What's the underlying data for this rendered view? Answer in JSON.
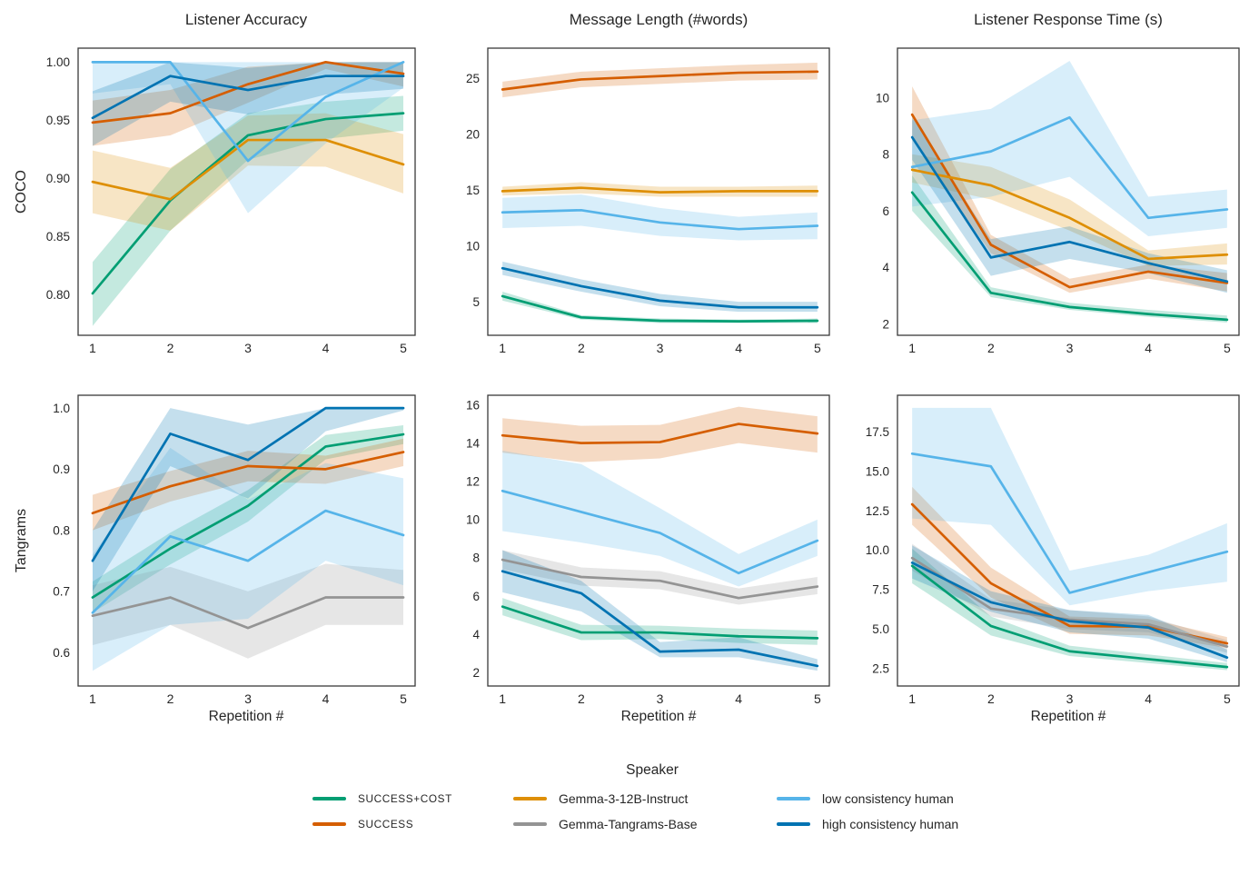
{
  "figure": {
    "column_titles": [
      "Listener Accuracy",
      "Message Length (#words)",
      "Listener Response Time (s)"
    ],
    "row_labels": [
      "COCO",
      "Tangrams"
    ],
    "xlabel": "Repetition #"
  },
  "legend": {
    "title": "Speaker",
    "entries": [
      {
        "key": "success_cost",
        "label": "SUCCESS+COST",
        "color": "#029e73"
      },
      {
        "key": "success",
        "label": "SUCCESS",
        "color": "#d55e00"
      },
      {
        "key": "gemma_12b",
        "label": "Gemma-3-12B-Instruct",
        "color": "#de8f05"
      },
      {
        "key": "gemma_base",
        "label": "Gemma-Tangrams-Base",
        "color": "#949494"
      },
      {
        "key": "low_human",
        "label": "low consistency human",
        "color": "#56b4e9"
      },
      {
        "key": "high_human",
        "label": "high consistency human",
        "color": "#0173b2"
      }
    ]
  },
  "chart_data": [
    {
      "type": "line",
      "title": "Listener Accuracy",
      "row": "COCO",
      "x": [
        1,
        2,
        3,
        4,
        5
      ],
      "xticks": [
        "1",
        "2",
        "3",
        "4",
        "5"
      ],
      "ylim": [
        0.765,
        1.012
      ],
      "yticks": [
        0.8,
        0.85,
        0.9,
        0.95,
        1.0
      ],
      "ytick_labels": [
        "0.80",
        "0.85",
        "0.90",
        "0.95",
        "1.00"
      ],
      "grid": false,
      "band_alpha": 0.23,
      "series": [
        {
          "key": "success_cost",
          "name": "SUCCESS+COST",
          "values": [
            0.801,
            0.881,
            0.937,
            0.951,
            0.956
          ],
          "band_lo": [
            0.773,
            0.855,
            0.916,
            0.934,
            0.941
          ],
          "band_hi": [
            0.828,
            0.908,
            0.956,
            0.966,
            0.971
          ]
        },
        {
          "key": "success",
          "name": "SUCCESS",
          "values": [
            0.948,
            0.956,
            0.981,
            1.0,
            0.99
          ],
          "band_lo": [
            0.928,
            0.937,
            0.965,
            0.994,
            0.979
          ],
          "band_hi": [
            0.967,
            0.976,
            0.996,
            1.0,
            1.0
          ]
        },
        {
          "key": "gemma_12b",
          "name": "Gemma-3-12B-Instruct",
          "values": [
            0.897,
            0.882,
            0.933,
            0.933,
            0.912
          ],
          "band_lo": [
            0.87,
            0.855,
            0.911,
            0.91,
            0.887
          ],
          "band_hi": [
            0.924,
            0.909,
            0.954,
            0.956,
            0.938
          ]
        },
        {
          "key": "low_human",
          "name": "low consistency human",
          "values": [
            1.0,
            1.0,
            0.915,
            0.97,
            1.0
          ],
          "band_lo": [
            0.973,
            0.981,
            0.87,
            0.93,
            0.978
          ],
          "band_hi": [
            1.0,
            1.0,
            1.0,
            1.0,
            1.0
          ]
        },
        {
          "key": "high_human",
          "name": "high consistency human",
          "values": [
            0.952,
            0.988,
            0.976,
            0.988,
            0.988
          ],
          "band_lo": [
            0.928,
            0.966,
            0.955,
            0.972,
            0.977
          ],
          "band_hi": [
            0.975,
            1.0,
            0.995,
            1.0,
            1.0
          ]
        }
      ]
    },
    {
      "type": "line",
      "title": "Message Length (#words)",
      "row": "COCO",
      "x": [
        1,
        2,
        3,
        4,
        5
      ],
      "xticks": [
        "1",
        "2",
        "3",
        "4",
        "5"
      ],
      "ylim": [
        2.0,
        27.7
      ],
      "yticks": [
        5,
        10,
        15,
        20,
        25
      ],
      "ytick_labels": [
        "5",
        "10",
        "15",
        "20",
        "25"
      ],
      "grid": false,
      "band_alpha": 0.23,
      "series": [
        {
          "key": "success_cost",
          "name": "SUCCESS+COST",
          "values": [
            5.5,
            3.6,
            3.3,
            3.25,
            3.3
          ],
          "band_lo": [
            5.1,
            3.4,
            3.1,
            3.1,
            3.1
          ],
          "band_hi": [
            5.9,
            3.8,
            3.5,
            3.4,
            3.5
          ]
        },
        {
          "key": "success",
          "name": "SUCCESS",
          "values": [
            24.0,
            24.9,
            25.2,
            25.5,
            25.6
          ],
          "band_lo": [
            23.3,
            24.2,
            24.5,
            24.8,
            24.9
          ],
          "band_hi": [
            24.7,
            25.6,
            25.9,
            26.2,
            26.4
          ]
        },
        {
          "key": "gemma_12b",
          "name": "Gemma-3-12B-Instruct",
          "values": [
            14.9,
            15.2,
            14.8,
            14.9,
            14.9
          ],
          "band_lo": [
            14.5,
            14.7,
            14.4,
            14.4,
            14.4
          ],
          "band_hi": [
            15.3,
            15.7,
            15.3,
            15.3,
            15.4
          ]
        },
        {
          "key": "low_human",
          "name": "low consistency human",
          "values": [
            13.0,
            13.2,
            12.1,
            11.5,
            11.8
          ],
          "band_lo": [
            11.6,
            11.8,
            10.9,
            10.5,
            10.6
          ],
          "band_hi": [
            14.3,
            14.6,
            13.4,
            12.6,
            13.0
          ]
        },
        {
          "key": "high_human",
          "name": "high consistency human",
          "values": [
            8.0,
            6.4,
            5.1,
            4.5,
            4.5
          ],
          "band_lo": [
            7.4,
            5.9,
            4.6,
            4.1,
            4.1
          ],
          "band_hi": [
            8.6,
            7.0,
            5.7,
            5.0,
            5.0
          ]
        }
      ]
    },
    {
      "type": "line",
      "title": "Listener Response Time (s)",
      "row": "COCO",
      "x": [
        1,
        2,
        3,
        4,
        5
      ],
      "xticks": [
        "1",
        "2",
        "3",
        "4",
        "5"
      ],
      "ylim": [
        1.6,
        11.75
      ],
      "yticks": [
        2,
        4,
        6,
        8,
        10
      ],
      "ytick_labels": [
        "2",
        "4",
        "6",
        "8",
        "10"
      ],
      "grid": false,
      "band_alpha": 0.23,
      "series": [
        {
          "key": "success_cost",
          "name": "SUCCESS+COST",
          "values": [
            6.65,
            3.1,
            2.6,
            2.35,
            2.15
          ],
          "band_lo": [
            6.0,
            2.95,
            2.5,
            2.25,
            2.05
          ],
          "band_hi": [
            7.25,
            3.3,
            2.75,
            2.5,
            2.3
          ]
        },
        {
          "key": "success",
          "name": "SUCCESS",
          "values": [
            9.4,
            4.8,
            3.3,
            3.85,
            3.45
          ],
          "band_lo": [
            8.5,
            4.5,
            3.1,
            3.6,
            3.15
          ],
          "band_hi": [
            10.4,
            5.15,
            3.6,
            4.1,
            3.8
          ]
        },
        {
          "key": "gemma_12b",
          "name": "Gemma-3-12B-Instruct",
          "values": [
            7.45,
            6.9,
            5.75,
            4.3,
            4.45
          ],
          "band_lo": [
            7.0,
            6.4,
            5.3,
            4.05,
            4.1
          ],
          "band_hi": [
            8.0,
            7.55,
            6.4,
            4.6,
            4.85
          ]
        },
        {
          "key": "low_human",
          "name": "low consistency human",
          "values": [
            7.55,
            8.1,
            9.3,
            5.75,
            6.05
          ],
          "band_lo": [
            6.15,
            6.5,
            7.2,
            5.1,
            5.4
          ],
          "band_hi": [
            9.2,
            9.6,
            11.3,
            6.5,
            6.75
          ]
        },
        {
          "key": "high_human",
          "name": "high consistency human",
          "values": [
            8.6,
            4.35,
            4.9,
            4.15,
            3.5
          ],
          "band_lo": [
            7.8,
            3.7,
            4.3,
            3.8,
            3.1
          ],
          "band_hi": [
            9.3,
            5.0,
            5.45,
            4.5,
            3.9
          ]
        }
      ]
    },
    {
      "type": "line",
      "title": "Listener Accuracy",
      "row": "Tangrams",
      "x": [
        1,
        2,
        3,
        4,
        5
      ],
      "xticks": [
        "1",
        "2",
        "3",
        "4",
        "5"
      ],
      "ylim": [
        0.545,
        1.021
      ],
      "yticks": [
        0.6,
        0.7,
        0.8,
        0.9,
        1.0
      ],
      "ytick_labels": [
        "0.6",
        "0.7",
        "0.8",
        "0.9",
        "1.0"
      ],
      "grid": false,
      "band_alpha": 0.23,
      "series": [
        {
          "key": "success_cost",
          "name": "SUCCESS+COST",
          "values": [
            0.69,
            0.77,
            0.84,
            0.937,
            0.957
          ],
          "band_lo": [
            0.665,
            0.744,
            0.814,
            0.916,
            0.941
          ],
          "band_hi": [
            0.716,
            0.796,
            0.866,
            0.956,
            0.972
          ]
        },
        {
          "key": "success",
          "name": "SUCCESS",
          "values": [
            0.828,
            0.872,
            0.905,
            0.9,
            0.928
          ],
          "band_lo": [
            0.8,
            0.847,
            0.88,
            0.876,
            0.905
          ],
          "band_hi": [
            0.858,
            0.897,
            0.93,
            0.922,
            0.95
          ]
        },
        {
          "key": "gemma_base",
          "name": "Gemma-Tangrams-Base",
          "values": [
            0.66,
            0.69,
            0.64,
            0.69,
            0.69
          ],
          "band_lo": [
            0.612,
            0.645,
            0.59,
            0.645,
            0.645
          ],
          "band_hi": [
            0.71,
            0.74,
            0.7,
            0.745,
            0.735
          ]
        },
        {
          "key": "low_human",
          "name": "low consistency human",
          "values": [
            0.665,
            0.79,
            0.75,
            0.832,
            0.792
          ],
          "band_lo": [
            0.57,
            0.645,
            0.655,
            0.75,
            0.71
          ],
          "band_hi": [
            0.76,
            0.935,
            0.85,
            0.91,
            0.885
          ]
        },
        {
          "key": "high_human",
          "name": "high consistency human",
          "values": [
            0.75,
            0.958,
            0.915,
            1.0,
            1.0
          ],
          "band_lo": [
            0.7,
            0.905,
            0.852,
            0.962,
            0.996
          ],
          "band_hi": [
            0.8,
            1.0,
            0.973,
            1.0,
            1.0
          ]
        }
      ]
    },
    {
      "type": "line",
      "title": "Message Length (#words)",
      "row": "Tangrams",
      "x": [
        1,
        2,
        3,
        4,
        5
      ],
      "xticks": [
        "1",
        "2",
        "3",
        "4",
        "5"
      ],
      "ylim": [
        1.3,
        16.5
      ],
      "yticks": [
        2,
        4,
        6,
        8,
        10,
        12,
        14,
        16
      ],
      "ytick_labels": [
        "2",
        "4",
        "6",
        "8",
        "10",
        "12",
        "14",
        "16"
      ],
      "grid": false,
      "band_alpha": 0.23,
      "series": [
        {
          "key": "success_cost",
          "name": "SUCCESS+COST",
          "values": [
            5.45,
            4.1,
            4.1,
            3.9,
            3.8
          ],
          "band_lo": [
            5.0,
            3.7,
            3.75,
            3.55,
            3.45
          ],
          "band_hi": [
            5.9,
            4.5,
            4.45,
            4.3,
            4.2
          ]
        },
        {
          "key": "success",
          "name": "SUCCESS",
          "values": [
            14.4,
            14.0,
            14.05,
            15.0,
            14.5
          ],
          "band_lo": [
            13.5,
            13.0,
            13.2,
            14.0,
            13.5
          ],
          "band_hi": [
            15.3,
            14.9,
            14.95,
            15.9,
            15.4
          ]
        },
        {
          "key": "gemma_base",
          "name": "Gemma-Tangrams-Base",
          "values": [
            7.9,
            7.0,
            6.8,
            5.9,
            6.5
          ],
          "band_lo": [
            7.4,
            6.55,
            6.35,
            5.55,
            6.1
          ],
          "band_hi": [
            8.4,
            7.5,
            7.3,
            6.4,
            7.0
          ]
        },
        {
          "key": "low_human",
          "name": "low consistency human",
          "values": [
            11.5,
            10.4,
            9.3,
            7.2,
            8.9
          ],
          "band_lo": [
            9.4,
            8.8,
            8.1,
            6.5,
            8.1
          ],
          "band_hi": [
            13.6,
            12.9,
            10.6,
            8.2,
            10.0
          ]
        },
        {
          "key": "high_human",
          "name": "high consistency human",
          "values": [
            7.3,
            6.15,
            3.1,
            3.2,
            2.35
          ],
          "band_lo": [
            6.2,
            5.2,
            2.8,
            2.8,
            2.1
          ],
          "band_hi": [
            8.4,
            6.8,
            3.6,
            3.85,
            2.7
          ]
        }
      ]
    },
    {
      "type": "line",
      "title": "Listener Response Time (s)",
      "row": "Tangrams",
      "x": [
        1,
        2,
        3,
        4,
        5
      ],
      "xticks": [
        "1",
        "2",
        "3",
        "4",
        "5"
      ],
      "ylim": [
        1.4,
        19.8
      ],
      "yticks": [
        2.5,
        5.0,
        7.5,
        10.0,
        12.5,
        15.0,
        17.5
      ],
      "ytick_labels": [
        "2.5",
        "5.0",
        "7.5",
        "10.0",
        "12.5",
        "15.0",
        "17.5"
      ],
      "grid": false,
      "band_alpha": 0.23,
      "series": [
        {
          "key": "success_cost",
          "name": "SUCCESS+COST",
          "values": [
            9.0,
            5.2,
            3.6,
            3.1,
            2.6
          ],
          "band_lo": [
            7.9,
            4.6,
            3.3,
            2.85,
            2.4
          ],
          "band_hi": [
            10.1,
            5.8,
            3.95,
            3.4,
            2.85
          ]
        },
        {
          "key": "success",
          "name": "SUCCESS",
          "values": [
            12.9,
            7.9,
            5.2,
            5.15,
            4.1
          ],
          "band_lo": [
            11.6,
            7.0,
            4.7,
            4.6,
            3.8
          ],
          "band_hi": [
            14.0,
            8.9,
            5.8,
            5.65,
            4.5
          ]
        },
        {
          "key": "gemma_base",
          "name": "Gemma-Tangrams-Base",
          "values": [
            9.5,
            6.3,
            5.6,
            5.3,
            3.9
          ],
          "band_lo": [
            8.7,
            5.8,
            5.0,
            4.8,
            3.5
          ],
          "band_hi": [
            10.4,
            6.9,
            6.2,
            5.8,
            4.3
          ]
        },
        {
          "key": "low_human",
          "name": "low consistency human",
          "values": [
            16.1,
            15.3,
            7.3,
            8.6,
            9.9
          ],
          "band_lo": [
            12.0,
            11.6,
            6.5,
            7.4,
            8.0
          ],
          "band_hi": [
            19.0,
            19.0,
            8.7,
            9.7,
            11.7
          ]
        },
        {
          "key": "high_human",
          "name": "high consistency human",
          "values": [
            9.2,
            6.7,
            5.5,
            5.1,
            3.2
          ],
          "band_lo": [
            8.2,
            6.1,
            4.8,
            4.4,
            2.9
          ],
          "band_hi": [
            10.3,
            7.4,
            6.2,
            5.9,
            3.7
          ]
        }
      ]
    }
  ]
}
